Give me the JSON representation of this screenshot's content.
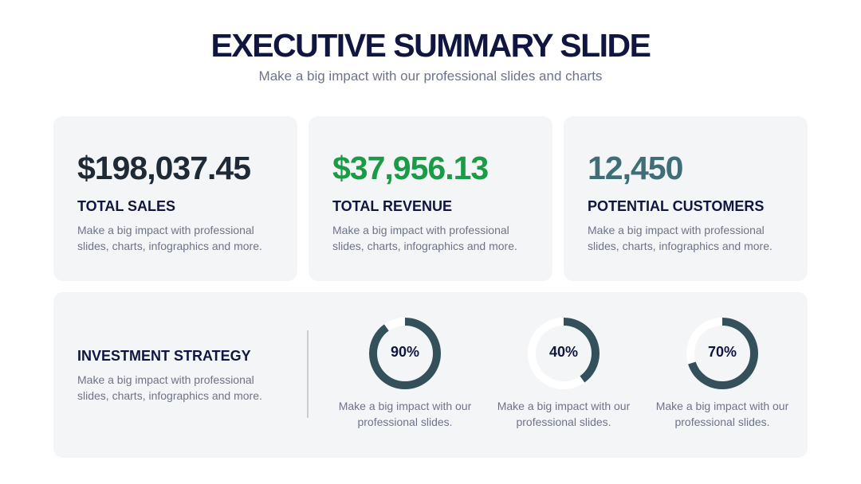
{
  "slide": {
    "title": "EXECUTIVE SUMMARY SLIDE",
    "subtitle": "Make a big impact with our professional slides and charts"
  },
  "stats": [
    {
      "value": "$198,037.45",
      "label": "TOTAL SALES",
      "description": "Make a big impact with professional slides, charts, infographics and more.",
      "color": "#1e2b36"
    },
    {
      "value": "$37,956.13",
      "label": "TOTAL REVENUE",
      "description": "Make a big impact with professional slides, charts, infographics and more.",
      "color": "#1a9c46"
    },
    {
      "value": "12,450",
      "label": "POTENTIAL CUSTOMERS",
      "description": "Make a big impact with professional slides, charts, infographics and more.",
      "color": "#3f6e78"
    }
  ],
  "strategy": {
    "title": "INVESTMENT STRATEGY",
    "description": "Make a big impact with professional slides, charts, infographics and more."
  },
  "progress": [
    {
      "percent_label": "90%",
      "value": 0.9,
      "description": "Make a big impact with our professional slides."
    },
    {
      "percent_label": "40%",
      "value": 0.4,
      "description": "Make a big impact with our professional slides."
    },
    {
      "percent_label": "70%",
      "value": 0.7,
      "description": "Make a big impact with our professional slides."
    }
  ],
  "colors": {
    "ring": "#34505a",
    "ring_track": "#ffffff",
    "heading": "#111640",
    "body_text": "#6e7388",
    "card_bg": "#f4f5f7"
  }
}
